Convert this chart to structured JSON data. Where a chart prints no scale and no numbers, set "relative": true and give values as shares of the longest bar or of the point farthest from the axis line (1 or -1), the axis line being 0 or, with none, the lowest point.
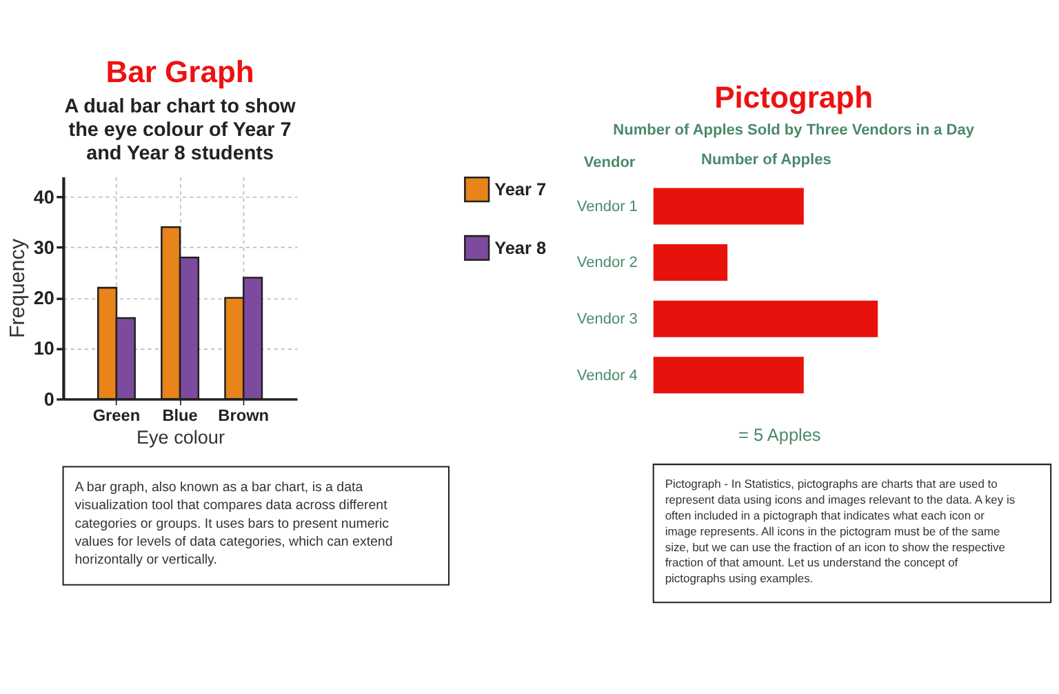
{
  "chart_data": [
    {
      "type": "bar",
      "title": "Bar Graph",
      "subtitle": "A dual bar chart to show the eye colour of Year 7 and Year 8 students",
      "categories": [
        "Green",
        "Blue",
        "Brown"
      ],
      "series": [
        {
          "name": "Year 7",
          "color": "#e8841a",
          "values": [
            22,
            34,
            20
          ]
        },
        {
          "name": "Year 8",
          "color": "#7d4b9e",
          "values": [
            16,
            28,
            24
          ]
        }
      ],
      "xlabel": "Eye colour",
      "ylabel": "Frequency",
      "ylim": [
        0,
        44
      ],
      "yticks": [
        0,
        10,
        20,
        30,
        40
      ],
      "grid": true,
      "legend": "top right",
      "annotations": [
        "A bar graph, also known as a bar chart, is a data visualization tool that compares data across different categories or groups. It uses bars to present numeric values for levels of data categories, which can extend horizontally or vertically."
      ]
    },
    {
      "type": "bar",
      "orientation": "horizontal",
      "relative": true,
      "title": "Pictograph",
      "subtitle": "Number of Apples Sold by Three Vendors in a Day",
      "categories": [
        "Vendor 1",
        "Vendor 2",
        "Vendor 3",
        "Vendor 4"
      ],
      "values": [
        0.67,
        0.33,
        1,
        0.67
      ],
      "color": "#e8120c",
      "xlabel": "Number of Apples",
      "ylabel": "Vendor",
      "annotations": [
        "= 5 Apples",
        "Pictograph - In Statistics, pictographs are charts that are used to represent data using icons and images relevant to the data. A key is often included in a pictograph that indicates what each icon or image represents. All icons in the pictogram must be of the same size, but we can use the fraction of an icon to show the respective fraction of that amount. Let us understand the concept of pictographs using examples."
      ]
    }
  ]
}
